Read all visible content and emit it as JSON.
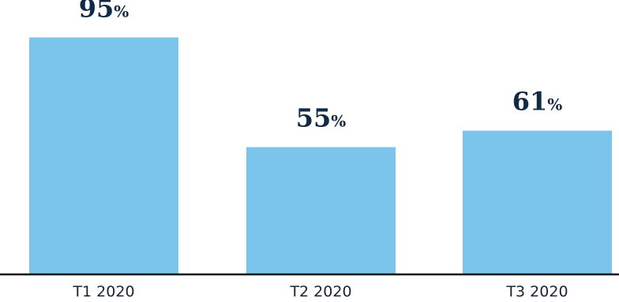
{
  "chart_data": {
    "type": "bar",
    "categories": [
      "T1 2020",
      "T2 2020",
      "T3 2020"
    ],
    "values": [
      95,
      55,
      61
    ],
    "value_labels": [
      {
        "number": "95",
        "unit": "%"
      },
      {
        "number": "55",
        "unit": "%"
      },
      {
        "number": "61",
        "unit": "%"
      }
    ],
    "ylim": [
      0,
      100
    ],
    "grid": false,
    "legend": "none",
    "bar_color": "#7bc4ec",
    "axis_color": "#111111",
    "label_color": "#132a45"
  }
}
